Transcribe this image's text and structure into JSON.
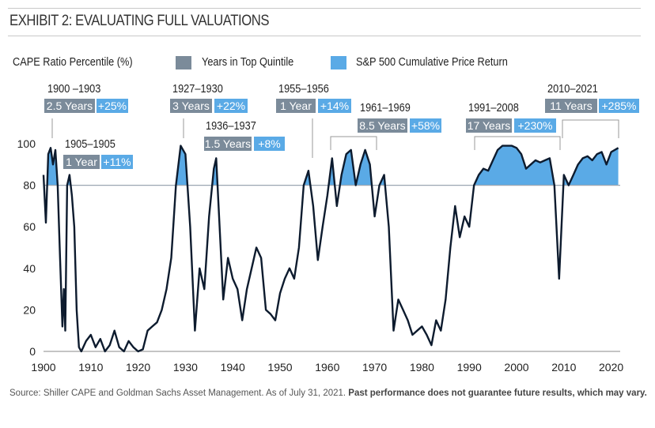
{
  "title": "EXHIBIT 2: EVALUATING FULL VALUATIONS",
  "legend": {
    "y_label": "CAPE Ratio Percentile (%)",
    "gray": "Years in Top Quintile",
    "blue": "S&P 500 Cumulative Price Return"
  },
  "colors": {
    "gray": "#7b8b9a",
    "blue": "#5aaae6",
    "line": "#0d1b2e"
  },
  "annotations": [
    {
      "period": "1900 –1903",
      "years": "2.5 Years",
      "ret": "+25%"
    },
    {
      "period": "1905–1905",
      "years": "1 Year",
      "ret": "+11%"
    },
    {
      "period": "1927–1930",
      "years": "3 Years",
      "ret": "+22%"
    },
    {
      "period": "1936–1937",
      "years": "1.5 Years",
      "ret": "+8%"
    },
    {
      "period": "1955–1956",
      "years": "1 Year",
      "ret": "+14%"
    },
    {
      "period": "1961–1969",
      "years": "8.5 Years",
      "ret": "+58%"
    },
    {
      "period": "1991–2008",
      "years": "17 Years",
      "ret": "+230%"
    },
    {
      "period": "2010–2021",
      "years": "11 Years",
      "ret": "+285%"
    }
  ],
  "source": {
    "plain": "Source: Shiller CAPE and Goldman Sachs Asset Management. As of July 31, 2021. ",
    "bold": "Past performance does not guarantee future results, which may vary."
  },
  "chart_data": {
    "type": "line",
    "title": "EXHIBIT 2: EVALUATING FULL VALUATIONS",
    "ylabel": "CAPE Ratio Percentile (%)",
    "xlabel": "",
    "xlim": [
      1900,
      2021.5
    ],
    "ylim": [
      0,
      100
    ],
    "threshold": 80,
    "xticks": [
      1900,
      1910,
      1920,
      1930,
      1940,
      1950,
      1960,
      1970,
      1980,
      1990,
      2000,
      2010,
      2020
    ],
    "yticks": [
      0,
      20,
      40,
      60,
      80,
      100
    ],
    "x": [
      1900,
      1900.5,
      1901,
      1901.5,
      1902,
      1902.5,
      1903,
      1903.5,
      1904,
      1904.3,
      1904.6,
      1905,
      1905.5,
      1906,
      1906.5,
      1907,
      1907.5,
      1908,
      1909,
      1910,
      1911,
      1912,
      1913,
      1914,
      1915,
      1916,
      1917,
      1918,
      1919,
      1920,
      1921,
      1922,
      1923,
      1924,
      1925,
      1926,
      1927,
      1928,
      1929,
      1930,
      1931,
      1932,
      1933,
      1934,
      1935,
      1936,
      1936.5,
      1937,
      1938,
      1939,
      1940,
      1941,
      1942,
      1943,
      1944,
      1945,
      1946,
      1947,
      1948,
      1949,
      1950,
      1951,
      1952,
      1953,
      1954,
      1955,
      1956,
      1957,
      1958,
      1959,
      1960,
      1961,
      1962,
      1963,
      1964,
      1965,
      1966,
      1967,
      1968,
      1969,
      1970,
      1971,
      1972,
      1973,
      1974,
      1975,
      1976,
      1977,
      1978,
      1979,
      1980,
      1981,
      1982,
      1983,
      1984,
      1985,
      1986,
      1987,
      1988,
      1989,
      1990,
      1991,
      1992,
      1993,
      1994,
      1995,
      1996,
      1997,
      1998,
      1999,
      2000,
      2001,
      2002,
      2003,
      2004,
      2005,
      2006,
      2007,
      2008,
      2009,
      2009.5,
      2010,
      2011,
      2012,
      2013,
      2014,
      2015,
      2016,
      2017,
      2018,
      2019,
      2020,
      2021.5
    ],
    "y": [
      85,
      62,
      95,
      98,
      90,
      97,
      80,
      45,
      12,
      30,
      10,
      80,
      85,
      75,
      60,
      20,
      2,
      0,
      5,
      8,
      2,
      6,
      0,
      3,
      10,
      2,
      0,
      5,
      2,
      0,
      1,
      10,
      12,
      14,
      20,
      30,
      45,
      80,
      99,
      95,
      60,
      10,
      40,
      30,
      65,
      88,
      93,
      70,
      25,
      45,
      35,
      30,
      15,
      30,
      40,
      50,
      45,
      20,
      18,
      15,
      28,
      35,
      40,
      35,
      50,
      80,
      87,
      70,
      44,
      60,
      75,
      93,
      70,
      85,
      95,
      97,
      80,
      90,
      97,
      90,
      65,
      80,
      85,
      60,
      10,
      25,
      20,
      15,
      8,
      10,
      12,
      8,
      3,
      15,
      10,
      25,
      50,
      70,
      55,
      65,
      60,
      80,
      85,
      88,
      87,
      92,
      97,
      99,
      99,
      99,
      98,
      95,
      88,
      90,
      92,
      91,
      92,
      93,
      80,
      35,
      60,
      85,
      80,
      85,
      90,
      93,
      94,
      92,
      95,
      96,
      90,
      96,
      98
    ]
  }
}
